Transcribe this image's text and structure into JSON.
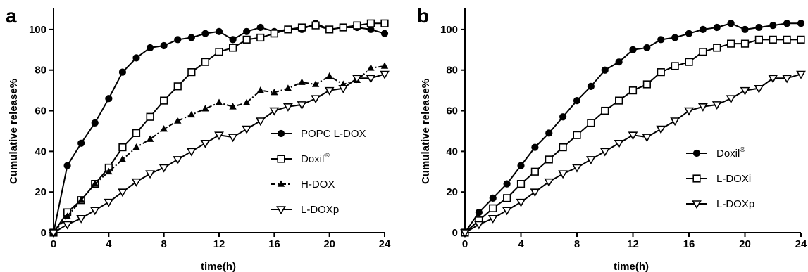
{
  "chart_data": [
    {
      "panel_label": "a",
      "type": "line",
      "xlabel": "time(h)",
      "ylabel": "Cumulative release%",
      "xlim": [
        0,
        24
      ],
      "ylim": [
        0,
        110
      ],
      "x_ticks": [
        "0",
        "4",
        "8",
        "12",
        "16",
        "20",
        "24"
      ],
      "y_ticks": [
        "0",
        "20",
        "40",
        "60",
        "80",
        "100"
      ],
      "legend_position": "right",
      "series": [
        {
          "name": "POPC L-DOX",
          "legend_main": "POPC L-DOX",
          "legend_sup": "",
          "marker": "filled-circle",
          "line": "solid",
          "x": [
            0,
            1,
            2,
            3,
            4,
            5,
            6,
            7,
            8,
            9,
            10,
            11,
            12,
            13,
            14,
            15,
            16,
            17,
            18,
            19,
            20,
            21,
            22,
            23,
            24
          ],
          "y": [
            0,
            33,
            44,
            54,
            66,
            79,
            86,
            91,
            92,
            95,
            96,
            98,
            99,
            95,
            99,
            101,
            99,
            100,
            100,
            103,
            100,
            101,
            101,
            100,
            98
          ]
        },
        {
          "name": "Doxil",
          "legend_main": "Doxil",
          "legend_sup": "®",
          "marker": "open-square",
          "line": "solid",
          "x": [
            0,
            1,
            2,
            3,
            4,
            5,
            6,
            7,
            8,
            9,
            10,
            11,
            12,
            13,
            14,
            15,
            16,
            17,
            18,
            19,
            20,
            21,
            22,
            23,
            24
          ],
          "y": [
            0,
            10,
            16,
            24,
            32,
            42,
            49,
            57,
            65,
            72,
            79,
            84,
            89,
            91,
            95,
            96,
            98,
            100,
            101,
            102,
            100,
            101,
            102,
            103,
            103
          ]
        },
        {
          "name": "H-DOX",
          "legend_main": "H-DOX",
          "legend_sup": "",
          "marker": "filled-triangle",
          "line": "dashdot",
          "x": [
            0,
            1,
            2,
            3,
            4,
            5,
            6,
            7,
            8,
            9,
            10,
            11,
            12,
            13,
            14,
            15,
            16,
            17,
            18,
            19,
            20,
            21,
            22,
            23,
            24
          ],
          "y": [
            0,
            8,
            16,
            24,
            30,
            36,
            42,
            46,
            51,
            55,
            58,
            61,
            64,
            62,
            64,
            70,
            69,
            71,
            74,
            73,
            77,
            73,
            75,
            81,
            82
          ]
        },
        {
          "name": "L-DOXp",
          "legend_main": "L-DOXp",
          "legend_sup": "",
          "marker": "open-triangle-down",
          "line": "solid",
          "x": [
            0,
            1,
            2,
            3,
            4,
            5,
            6,
            7,
            8,
            9,
            10,
            11,
            12,
            13,
            14,
            15,
            16,
            17,
            18,
            19,
            20,
            21,
            22,
            23,
            24
          ],
          "y": [
            0,
            4,
            7,
            11,
            15,
            20,
            25,
            29,
            32,
            36,
            40,
            44,
            48,
            47,
            51,
            55,
            60,
            62,
            63,
            66,
            70,
            71,
            76,
            76,
            78
          ]
        }
      ]
    },
    {
      "panel_label": "b",
      "type": "line",
      "xlabel": "time(h)",
      "ylabel": "Cumulative release%",
      "xlim": [
        0,
        24
      ],
      "ylim": [
        0,
        110
      ],
      "x_ticks": [
        "0",
        "4",
        "8",
        "12",
        "16",
        "20",
        "24"
      ],
      "y_ticks": [
        "0",
        "20",
        "40",
        "60",
        "80",
        "100"
      ],
      "legend_position": "right",
      "series": [
        {
          "name": "Doxil",
          "legend_main": "Doxil",
          "legend_sup": "®",
          "marker": "filled-circle",
          "line": "solid",
          "x": [
            0,
            1,
            2,
            3,
            4,
            5,
            6,
            7,
            8,
            9,
            10,
            11,
            12,
            13,
            14,
            15,
            16,
            17,
            18,
            19,
            20,
            21,
            22,
            23,
            24
          ],
          "y": [
            0,
            10,
            17,
            24,
            33,
            42,
            49,
            57,
            65,
            72,
            80,
            84,
            90,
            91,
            95,
            96,
            98,
            100,
            101,
            103,
            100,
            101,
            102,
            103,
            103
          ]
        },
        {
          "name": "L-DOXi",
          "legend_main": "L-DOXi",
          "legend_sup": "",
          "marker": "open-square",
          "line": "solid",
          "x": [
            0,
            1,
            2,
            3,
            4,
            5,
            6,
            7,
            8,
            9,
            10,
            11,
            12,
            13,
            14,
            15,
            16,
            17,
            18,
            19,
            20,
            21,
            22,
            23,
            24
          ],
          "y": [
            0,
            6,
            12,
            17,
            24,
            30,
            36,
            42,
            48,
            54,
            60,
            65,
            70,
            73,
            79,
            82,
            84,
            89,
            91,
            93,
            93,
            95,
            95,
            95,
            95
          ]
        },
        {
          "name": "L-DOXp",
          "legend_main": "L-DOXp",
          "legend_sup": "",
          "marker": "open-triangle-down",
          "line": "solid",
          "x": [
            0,
            1,
            2,
            3,
            4,
            5,
            6,
            7,
            8,
            9,
            10,
            11,
            12,
            13,
            14,
            15,
            16,
            17,
            18,
            19,
            20,
            21,
            22,
            23,
            24
          ],
          "y": [
            0,
            4,
            7,
            11,
            15,
            20,
            25,
            29,
            32,
            36,
            40,
            44,
            48,
            47,
            51,
            55,
            60,
            62,
            63,
            66,
            70,
            71,
            76,
            76,
            78
          ]
        }
      ]
    }
  ]
}
